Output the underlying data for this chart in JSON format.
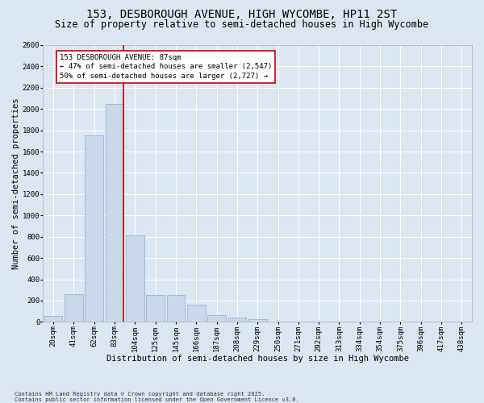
{
  "title": "153, DESBOROUGH AVENUE, HIGH WYCOMBE, HP11 2ST",
  "subtitle": "Size of property relative to semi-detached houses in High Wycombe",
  "xlabel": "Distribution of semi-detached houses by size in High Wycombe",
  "ylabel": "Number of semi-detached properties",
  "footnote": "Contains HM Land Registry data © Crown copyright and database right 2025.\nContains public sector information licensed under the Open Government Licence v3.0.",
  "categories": [
    "20sqm",
    "41sqm",
    "62sqm",
    "83sqm",
    "104sqm",
    "125sqm",
    "145sqm",
    "166sqm",
    "187sqm",
    "208sqm",
    "229sqm",
    "250sqm",
    "271sqm",
    "292sqm",
    "313sqm",
    "334sqm",
    "354sqm",
    "375sqm",
    "396sqm",
    "417sqm",
    "438sqm"
  ],
  "values": [
    55,
    260,
    1750,
    2050,
    810,
    255,
    255,
    165,
    60,
    40,
    25,
    0,
    0,
    0,
    0,
    0,
    0,
    0,
    0,
    0,
    0
  ],
  "bar_color": "#c8d9ec",
  "bar_edge_color": "#8aadd4",
  "vline_bin_index": 3,
  "vline_color": "#cc0000",
  "annotation_line1": "153 DESBOROUGH AVENUE: 87sqm",
  "annotation_line2": "← 47% of semi-detached houses are smaller (2,547)",
  "annotation_line3": "50% of semi-detached houses are larger (2,727) →",
  "annotation_box_facecolor": "#ffffff",
  "annotation_box_edgecolor": "#cc0000",
  "ylim": [
    0,
    2600
  ],
  "yticks": [
    0,
    200,
    400,
    600,
    800,
    1000,
    1200,
    1400,
    1600,
    1800,
    2000,
    2200,
    2400,
    2600
  ],
  "background_color": "#dce6f0",
  "grid_color": "#ffffff",
  "title_fontsize": 10,
  "subtitle_fontsize": 8.5,
  "axis_label_fontsize": 7.5,
  "tick_fontsize": 6.5,
  "annotation_fontsize": 6.5,
  "footnote_fontsize": 5
}
